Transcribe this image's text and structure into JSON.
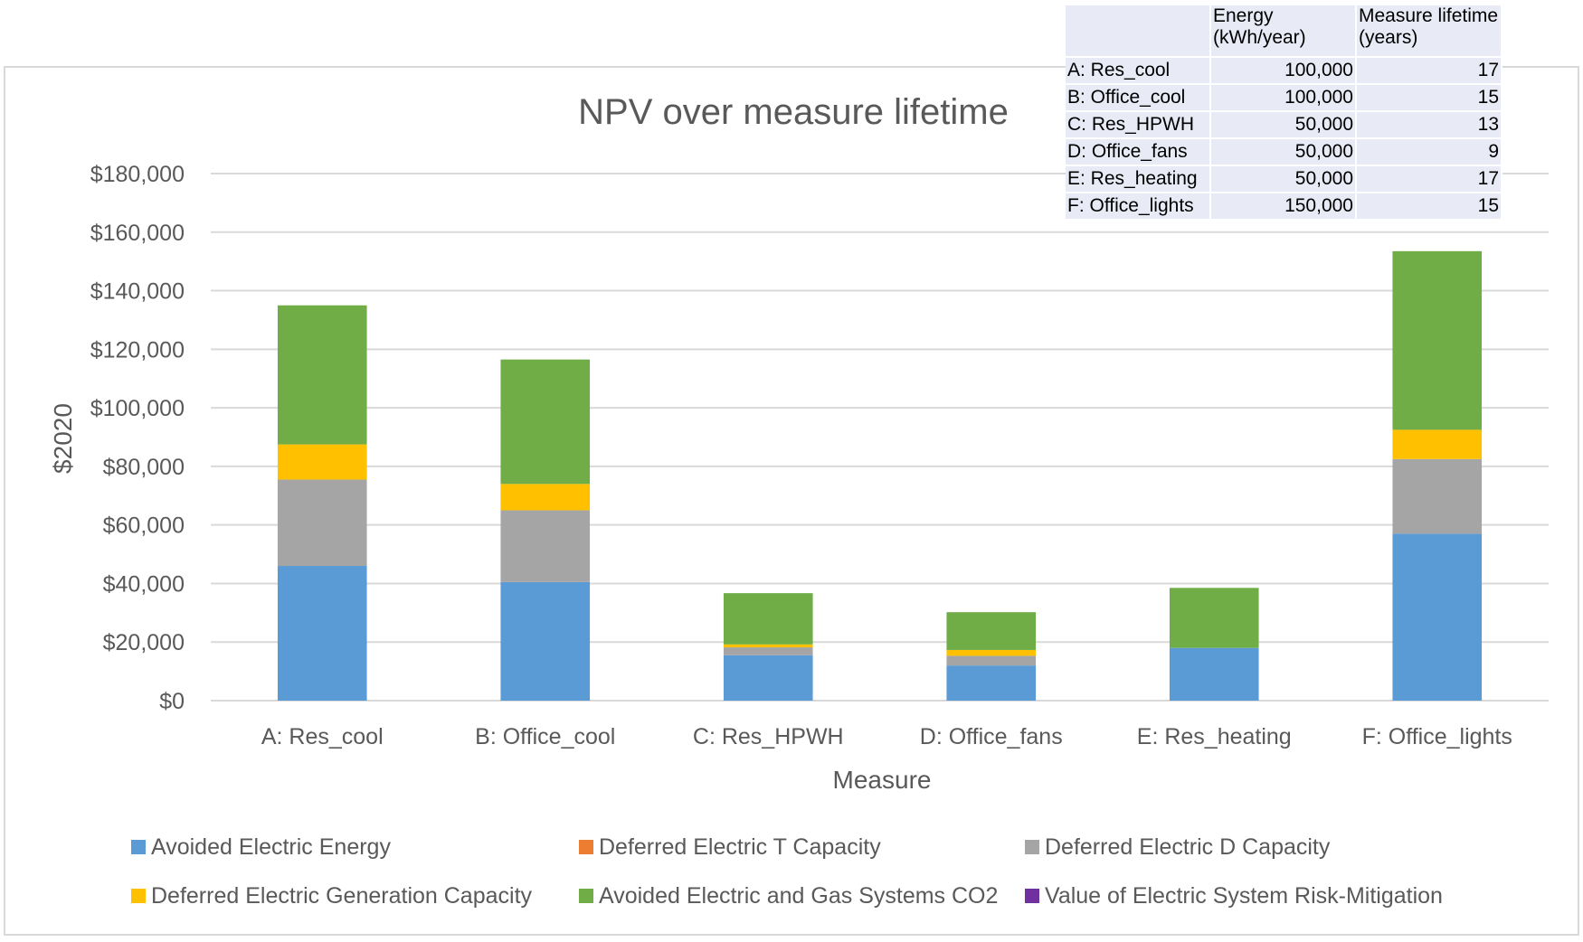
{
  "chart_data": {
    "type": "bar",
    "stacked": true,
    "title": "NPV over measure lifetime",
    "xlabel": "Measure",
    "ylabel": "$2020",
    "ylim": [
      0,
      180000
    ],
    "y_ticks": [
      0,
      20000,
      40000,
      60000,
      80000,
      100000,
      120000,
      140000,
      160000,
      180000
    ],
    "y_tick_labels": [
      "$0",
      "$20,000",
      "$40,000",
      "$60,000",
      "$80,000",
      "$100,000",
      "$120,000",
      "$140,000",
      "$160,000",
      "$180,000"
    ],
    "grid": true,
    "legend_position": "bottom",
    "categories": [
      "A: Res_cool",
      "B: Office_cool",
      "C: Res_HPWH",
      "D: Office_fans",
      "E: Res_heating",
      "F: Office_lights"
    ],
    "series": [
      {
        "name": "Avoided Electric Energy",
        "color": "#5b9bd5",
        "values": [
          46000,
          40500,
          15500,
          12000,
          18000,
          57000
        ]
      },
      {
        "name": "Deferred Electric T Capacity",
        "color": "#ed7d31",
        "values": [
          0,
          0,
          0,
          0,
          0,
          0
        ]
      },
      {
        "name": "Deferred Electric D Capacity",
        "color": "#a5a5a5",
        "values": [
          29500,
          24500,
          2700,
          3300,
          0,
          25500
        ]
      },
      {
        "name": "Deferred Electric Generation Capacity",
        "color": "#ffc000",
        "values": [
          12000,
          9000,
          1000,
          2000,
          0,
          10000
        ]
      },
      {
        "name": "Avoided Electric and Gas Systems CO2",
        "color": "#70ad47",
        "values": [
          47500,
          42500,
          17500,
          12900,
          20500,
          61000
        ]
      },
      {
        "name": "Value of Electric System Risk-Mitigation",
        "color": "#7030a0",
        "values": [
          0,
          0,
          0,
          0,
          0,
          0
        ]
      }
    ]
  },
  "table": {
    "headers": [
      "",
      "Energy (kWh/year)",
      "Measure lifetime (years)"
    ],
    "rows": [
      [
        "A: Res_cool",
        "100,000",
        "17"
      ],
      [
        "B: Office_cool",
        "100,000",
        "15"
      ],
      [
        "C: Res_HPWH",
        "50,000",
        "13"
      ],
      [
        "D: Office_fans",
        "50,000",
        "9"
      ],
      [
        "E: Res_heating",
        "50,000",
        "17"
      ],
      [
        "F: Office_lights",
        "150,000",
        "15"
      ]
    ]
  }
}
